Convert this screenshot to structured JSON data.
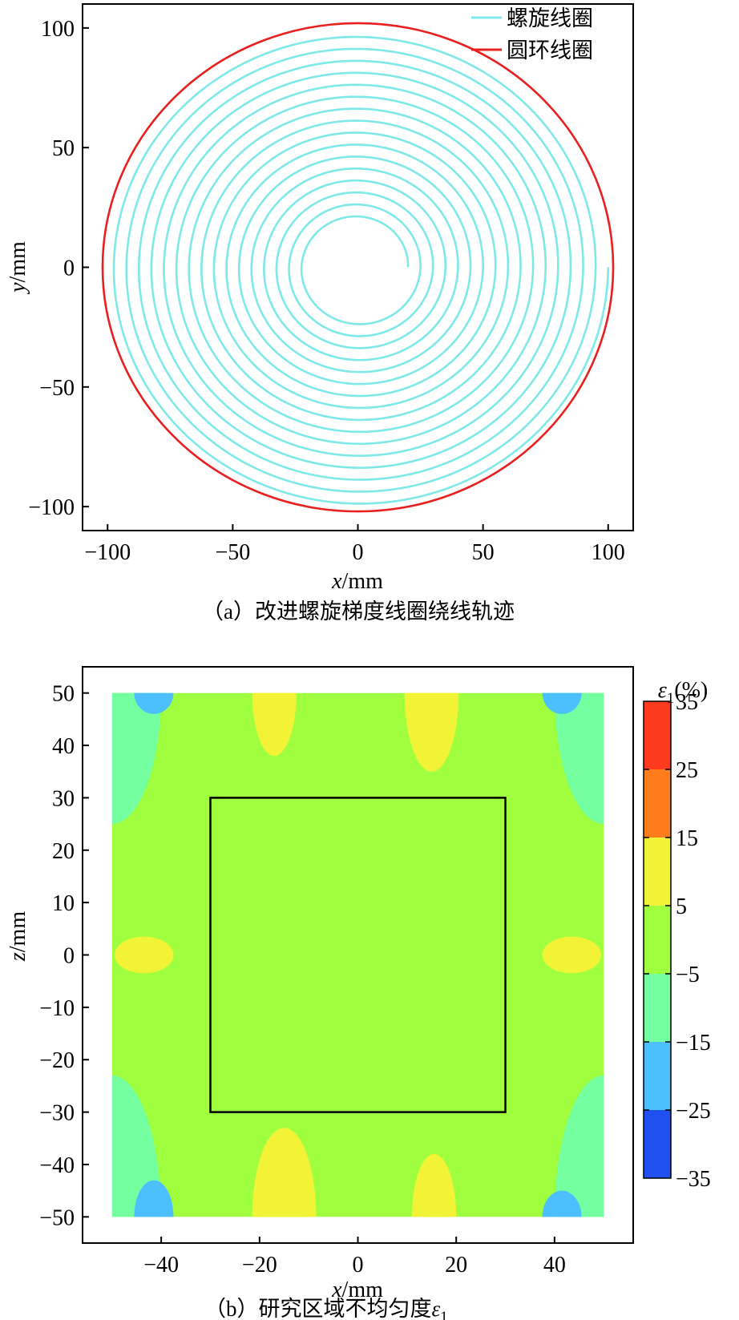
{
  "chart_data": [
    {
      "type": "line",
      "title": "",
      "caption": "（a）改进螺旋梯度线圈绕线轨迹",
      "xlabel_var": "x",
      "xlabel_unit": "/mm",
      "ylabel_var": "y",
      "ylabel_unit": "/mm",
      "xlim": [
        -110,
        110
      ],
      "ylim": [
        -110,
        110
      ],
      "xticks": [
        -100,
        -50,
        0,
        50,
        100
      ],
      "yticks": [
        -100,
        -50,
        0,
        50,
        100
      ],
      "xtick_labels": [
        "−100",
        "−50",
        "0",
        "50",
        "100"
      ],
      "ytick_labels": [
        "−100",
        "−50",
        "0",
        "50",
        "100"
      ],
      "legend_position": "top-right",
      "series": [
        {
          "name": "螺旋线圈",
          "color": "#7fe8e8",
          "shape": "spiral",
          "start_radius": 20,
          "end_radius": 100,
          "turns": 16
        },
        {
          "name": "圆环线圈",
          "color": "#e82020",
          "shape": "circle",
          "radius": 102
        }
      ]
    },
    {
      "type": "heatmap",
      "title": "",
      "caption_prefix": "（b）研究区域不均匀度",
      "caption_symbol": "ε",
      "caption_sub": "1",
      "xlabel_var": "x",
      "xlabel_unit": "/mm",
      "ylabel_var": "z",
      "ylabel_unit": "/mm",
      "xlim": [
        -56,
        56
      ],
      "ylim": [
        -55,
        55
      ],
      "xticks": [
        -40,
        -20,
        0,
        20,
        40
      ],
      "yticks": [
        50,
        40,
        30,
        20,
        10,
        0,
        -10,
        -20,
        -30,
        -40,
        -50
      ],
      "xtick_labels": [
        "−40",
        "−20",
        "0",
        "20",
        "40"
      ],
      "ytick_labels": [
        "50",
        "40",
        "30",
        "20",
        "10",
        "0",
        "−10",
        "−20",
        "−30",
        "−40",
        "−50"
      ],
      "data_extent": {
        "x": [
          -50,
          50
        ],
        "z": [
          -50,
          50
        ]
      },
      "study_region": {
        "x": [
          -30,
          30
        ],
        "z": [
          -30,
          30
        ]
      },
      "colorbar": {
        "title_symbol": "ε",
        "title_sub": "1",
        "title_suffix": "(%)",
        "levels": [
          35,
          25,
          15,
          5,
          -5,
          -15,
          -25,
          -35
        ],
        "level_labels": [
          "35",
          "25",
          "15",
          "5",
          "−5",
          "−15",
          "−25",
          "−35"
        ],
        "colors": [
          "#ff3b1f",
          "#ff7d1c",
          "#f2f236",
          "#a0ff3e",
          "#74ffa0",
          "#4cc0ff",
          "#2050f0"
        ]
      },
      "background_level_color": "#a0ff3e",
      "regions": [
        {
          "level": "-15..-5",
          "color": "#74ffa0",
          "cx": -50,
          "cz": 50,
          "rx": 10,
          "rz": 25
        },
        {
          "level": "-15..-5",
          "color": "#74ffa0",
          "cx": 50,
          "cz": 50,
          "rx": 10,
          "rz": 25
        },
        {
          "level": "-15..-5",
          "color": "#74ffa0",
          "cx": -50,
          "cz": -50,
          "rx": 10,
          "rz": 27
        },
        {
          "level": "-15..-5",
          "color": "#74ffa0",
          "cx": 50,
          "cz": -50,
          "rx": 10,
          "rz": 27
        },
        {
          "level": "-25..-15",
          "color": "#4cc0ff",
          "cx": -41.5,
          "cz": 50,
          "rx": 4,
          "rz": 4
        },
        {
          "level": "-25..-15",
          "color": "#4cc0ff",
          "cx": 41.5,
          "cz": 50,
          "rx": 4,
          "rz": 4
        },
        {
          "level": "-25..-15",
          "color": "#4cc0ff",
          "cx": -41.5,
          "cz": -50,
          "rx": 4,
          "rz": 7
        },
        {
          "level": "-25..-15",
          "color": "#4cc0ff",
          "cx": 41.5,
          "cz": -50,
          "rx": 4,
          "rz": 5
        },
        {
          "level": "5..15",
          "color": "#f2f236",
          "cx": -17,
          "cz": 50,
          "rx": 4.5,
          "rz": 12
        },
        {
          "level": "5..15",
          "color": "#f2f236",
          "cx": 15,
          "cz": 50,
          "rx": 5.5,
          "rz": 15
        },
        {
          "level": "5..15",
          "color": "#f2f236",
          "cx": -15,
          "cz": -50,
          "rx": 6.5,
          "rz": 17
        },
        {
          "level": "5..15",
          "color": "#f2f236",
          "cx": 15.5,
          "cz": -50,
          "rx": 4.5,
          "rz": 12
        },
        {
          "level": "5..15",
          "color": "#f2f236",
          "cx": -43.5,
          "cz": 0,
          "rx": 6,
          "rz": 3.5
        },
        {
          "level": "5..15",
          "color": "#f2f236",
          "cx": 43.5,
          "cz": 0,
          "rx": 6,
          "rz": 3.5
        }
      ]
    }
  ]
}
